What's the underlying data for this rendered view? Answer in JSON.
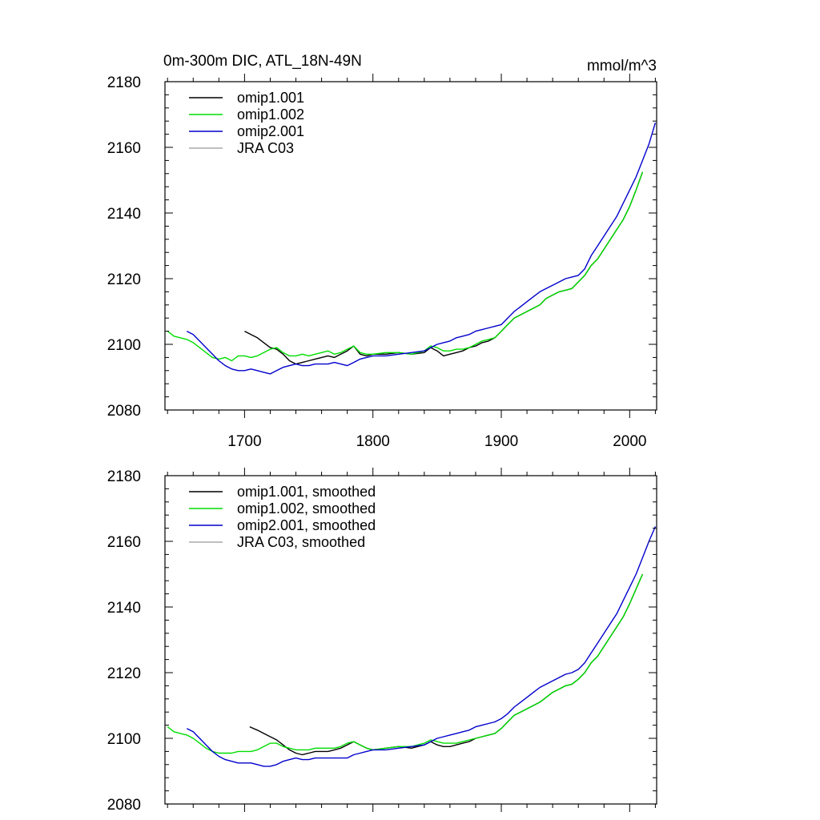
{
  "chart_data": [
    {
      "type": "line",
      "title": "0m-300m DIC, ATL_18N-49N",
      "units": "mmol/m^3",
      "xlim": [
        1638,
        2021
      ],
      "ylim": [
        2080,
        2180
      ],
      "xticks": [
        "1700",
        "1800",
        "1900",
        "2000"
      ],
      "yticks": [
        "2080",
        "2100",
        "2120",
        "2140",
        "2160",
        "2180"
      ],
      "legend_position": "top-left",
      "series": [
        {
          "name": "omip1.001",
          "color": "#000000",
          "x": [
            1700,
            1705,
            1710,
            1715,
            1720,
            1725,
            1730,
            1735,
            1740,
            1745,
            1750,
            1755,
            1760,
            1765,
            1770,
            1775,
            1780,
            1785,
            1790,
            1795,
            1800,
            1810,
            1820,
            1830,
            1840,
            1845,
            1850,
            1855,
            1860,
            1865,
            1870,
            1875,
            1880,
            1885,
            1890,
            1895,
            1900,
            1905,
            1910,
            1915,
            1920,
            1925,
            1930,
            1935,
            1940,
            1945,
            1950,
            1955,
            1960,
            1965,
            1970,
            1975,
            1980,
            1985,
            1990,
            1995,
            2000,
            2005,
            2010
          ],
          "y": [
            2104,
            2103,
            2102,
            2100.5,
            2099,
            2098.5,
            2097,
            2095,
            2094,
            2094.5,
            2095,
            2095.5,
            2096,
            2096.5,
            2096,
            2097,
            2098,
            2099.5,
            2097,
            2096.5,
            2097,
            2097,
            2097.5,
            2097,
            2097.5,
            2099,
            2098,
            2096.5,
            2097,
            2097.5,
            2098,
            2099,
            2099.5,
            2100.5,
            2101,
            2102,
            2104,
            2106,
            2108,
            2109,
            2110,
            2111,
            2112,
            2114,
            2115,
            2116,
            2116.5,
            2117,
            2119,
            2121,
            2124,
            2126,
            2129,
            2132,
            2135,
            2138,
            2142,
            2147,
            2152.5
          ]
        },
        {
          "name": "omip1.002",
          "color": "#00dd00",
          "x": [
            1640,
            1645,
            1650,
            1655,
            1660,
            1665,
            1670,
            1675,
            1680,
            1685,
            1690,
            1695,
            1700,
            1705,
            1710,
            1715,
            1720,
            1725,
            1730,
            1735,
            1740,
            1745,
            1750,
            1755,
            1760,
            1765,
            1770,
            1775,
            1780,
            1785,
            1790,
            1795,
            1800,
            1810,
            1820,
            1830,
            1840,
            1845,
            1850,
            1855,
            1860,
            1865,
            1870,
            1875,
            1880,
            1885,
            1890,
            1895,
            1900,
            1905,
            1910,
            1915,
            1920,
            1925,
            1930,
            1935,
            1940,
            1945,
            1950,
            1955,
            1960,
            1965,
            1970,
            1975,
            1980,
            1985,
            1990,
            1995,
            2000,
            2005,
            2010
          ],
          "y": [
            2104,
            2102.5,
            2102,
            2101.5,
            2100.5,
            2099,
            2097.5,
            2096,
            2095.5,
            2096,
            2095,
            2096.5,
            2096.5,
            2096,
            2096.5,
            2097.5,
            2098.5,
            2099,
            2097.5,
            2096.5,
            2096.5,
            2097,
            2096.5,
            2097,
            2097.5,
            2098,
            2097,
            2097.5,
            2098.5,
            2099.5,
            2097.5,
            2097,
            2097,
            2097.5,
            2097.5,
            2097,
            2098,
            2099.5,
            2099,
            2098,
            2098,
            2098.5,
            2098.5,
            2099,
            2100,
            2101,
            2101.5,
            2102,
            2104,
            2106,
            2108,
            2109,
            2110,
            2111,
            2112,
            2114,
            2115,
            2116,
            2116.5,
            2117,
            2119,
            2121,
            2124,
            2126,
            2129,
            2132,
            2135,
            2138,
            2142,
            2147,
            2152.5
          ]
        },
        {
          "name": "omip2.001",
          "color": "#0000cc",
          "x": [
            1655,
            1660,
            1665,
            1670,
            1675,
            1680,
            1685,
            1690,
            1695,
            1700,
            1705,
            1710,
            1715,
            1720,
            1725,
            1730,
            1735,
            1740,
            1745,
            1750,
            1755,
            1760,
            1765,
            1770,
            1775,
            1780,
            1785,
            1790,
            1795,
            1800,
            1810,
            1820,
            1830,
            1840,
            1850,
            1855,
            1860,
            1865,
            1870,
            1875,
            1880,
            1885,
            1890,
            1895,
            1900,
            1905,
            1910,
            1915,
            1920,
            1925,
            1930,
            1935,
            1940,
            1945,
            1950,
            1955,
            1960,
            1965,
            1970,
            1975,
            1980,
            1985,
            1990,
            1995,
            2000,
            2005,
            2010,
            2015,
            2020
          ],
          "y": [
            2104,
            2103,
            2101,
            2099,
            2097,
            2095,
            2093.5,
            2092.5,
            2092,
            2092,
            2092.5,
            2092,
            2091.5,
            2091,
            2092,
            2093,
            2093.5,
            2094,
            2093.5,
            2093.5,
            2094,
            2094,
            2094,
            2094.5,
            2094,
            2093.5,
            2094.5,
            2095.5,
            2096,
            2096.5,
            2096.5,
            2097,
            2097.5,
            2098,
            2100,
            2100.5,
            2101,
            2102,
            2102.5,
            2103,
            2104,
            2104.5,
            2105,
            2105.5,
            2106,
            2108,
            2110,
            2111.5,
            2113,
            2114.5,
            2116,
            2117,
            2118,
            2119,
            2120,
            2120.5,
            2121,
            2123,
            2127,
            2130,
            2133,
            2136,
            2139,
            2143,
            2147,
            2151,
            2156,
            2161,
            2167.5
          ]
        },
        {
          "name": "JRA C03",
          "color": "#aaaaaa",
          "x": [],
          "y": []
        }
      ]
    },
    {
      "type": "line",
      "xlim": [
        1638,
        2021
      ],
      "ylim": [
        2080,
        2180
      ],
      "yticks": [
        "2080",
        "2100",
        "2120",
        "2140",
        "2160",
        "2180"
      ],
      "legend_position": "top-left",
      "series": [
        {
          "name": "omip1.001, smoothed",
          "color": "#000000",
          "x": [
            1704,
            1710,
            1715,
            1720,
            1725,
            1730,
            1735,
            1740,
            1745,
            1750,
            1755,
            1760,
            1765,
            1770,
            1775,
            1780,
            1785,
            1790,
            1795,
            1800,
            1810,
            1820,
            1830,
            1840,
            1845,
            1850,
            1855,
            1860,
            1865,
            1870,
            1875,
            1880,
            1885,
            1890,
            1895,
            1900,
            1905,
            1910,
            1915,
            1920,
            1925,
            1930,
            1935,
            1940,
            1945,
            1950,
            1955,
            1960,
            1965,
            1970,
            1975,
            1980,
            1985,
            1990,
            1995,
            2000,
            2005,
            2010
          ],
          "y": [
            2103.5,
            2102.5,
            2101.5,
            2100.5,
            2099.5,
            2098,
            2096.5,
            2095.5,
            2095,
            2095.5,
            2096,
            2096,
            2096,
            2096.5,
            2097,
            2098,
            2099,
            2098,
            2097,
            2096.5,
            2097,
            2097.5,
            2097,
            2098,
            2099,
            2098,
            2097.5,
            2097.5,
            2098,
            2098.5,
            2099,
            2100,
            2100.5,
            2101,
            2101.5,
            2103,
            2105,
            2107,
            2108,
            2109,
            2110,
            2111,
            2112.5,
            2114,
            2115,
            2116,
            2116.5,
            2118,
            2120,
            2123,
            2125,
            2128,
            2131,
            2134,
            2137,
            2141,
            2145.5,
            2150
          ]
        },
        {
          "name": "omip1.002, smoothed",
          "color": "#00dd00",
          "x": [
            1640,
            1645,
            1650,
            1655,
            1660,
            1665,
            1670,
            1675,
            1680,
            1685,
            1690,
            1695,
            1700,
            1705,
            1710,
            1715,
            1720,
            1725,
            1730,
            1735,
            1740,
            1745,
            1750,
            1755,
            1760,
            1765,
            1770,
            1775,
            1780,
            1785,
            1790,
            1795,
            1800,
            1810,
            1820,
            1830,
            1840,
            1845,
            1850,
            1855,
            1860,
            1865,
            1870,
            1875,
            1880,
            1885,
            1890,
            1895,
            1900,
            1905,
            1910,
            1915,
            1920,
            1925,
            1930,
            1935,
            1940,
            1945,
            1950,
            1955,
            1960,
            1965,
            1970,
            1975,
            1980,
            1985,
            1990,
            1995,
            2000,
            2005,
            2010
          ],
          "y": [
            2103.5,
            2102,
            2101.5,
            2101,
            2100,
            2098.5,
            2097,
            2096,
            2095.5,
            2095.5,
            2095.5,
            2096,
            2096,
            2096,
            2096.5,
            2097.5,
            2098.5,
            2098.5,
            2097.5,
            2097,
            2096.5,
            2096.5,
            2096.5,
            2097,
            2097,
            2097,
            2097,
            2097.5,
            2098.5,
            2099,
            2098,
            2097,
            2096.5,
            2097,
            2097.5,
            2097.5,
            2098.5,
            2099.5,
            2099,
            2098.5,
            2098.5,
            2098.5,
            2099,
            2099.5,
            2100,
            2100.5,
            2101,
            2101.5,
            2103,
            2105,
            2107,
            2108,
            2109,
            2110,
            2111,
            2112.5,
            2114,
            2115,
            2116,
            2116.5,
            2118,
            2120,
            2123,
            2125,
            2128,
            2131,
            2134,
            2137,
            2141,
            2145.5,
            2150
          ]
        },
        {
          "name": "omip2.001, smoothed",
          "color": "#0000cc",
          "x": [
            1655,
            1660,
            1665,
            1670,
            1675,
            1680,
            1685,
            1690,
            1695,
            1700,
            1705,
            1710,
            1715,
            1720,
            1725,
            1730,
            1735,
            1740,
            1745,
            1750,
            1755,
            1760,
            1765,
            1770,
            1775,
            1780,
            1785,
            1790,
            1795,
            1800,
            1810,
            1820,
            1830,
            1840,
            1850,
            1855,
            1860,
            1865,
            1870,
            1875,
            1880,
            1885,
            1890,
            1895,
            1900,
            1905,
            1910,
            1915,
            1920,
            1925,
            1930,
            1935,
            1940,
            1945,
            1950,
            1955,
            1960,
            1965,
            1970,
            1975,
            1980,
            1985,
            1990,
            1995,
            2000,
            2005,
            2010,
            2015,
            2020
          ],
          "y": [
            2103,
            2102,
            2100,
            2098,
            2096,
            2094.5,
            2093.5,
            2093,
            2092.5,
            2092.5,
            2092.5,
            2092,
            2091.5,
            2091.5,
            2092,
            2093,
            2093.5,
            2094,
            2093.5,
            2093.5,
            2094,
            2094,
            2094,
            2094,
            2094,
            2094,
            2095,
            2095.5,
            2096,
            2096.5,
            2096.5,
            2097,
            2097.5,
            2098,
            2100,
            2100.5,
            2101,
            2101.5,
            2102,
            2102.5,
            2103.5,
            2104,
            2104.5,
            2105,
            2106,
            2107.5,
            2109.5,
            2111,
            2112.5,
            2114,
            2115.5,
            2116.5,
            2117.5,
            2118.5,
            2119.5,
            2120,
            2121,
            2123,
            2126,
            2129,
            2132,
            2135,
            2138,
            2142,
            2146,
            2150,
            2155,
            2160,
            2164.5
          ]
        },
        {
          "name": "JRA C03, smoothed",
          "color": "#aaaaaa",
          "x": [],
          "y": []
        }
      ]
    }
  ]
}
